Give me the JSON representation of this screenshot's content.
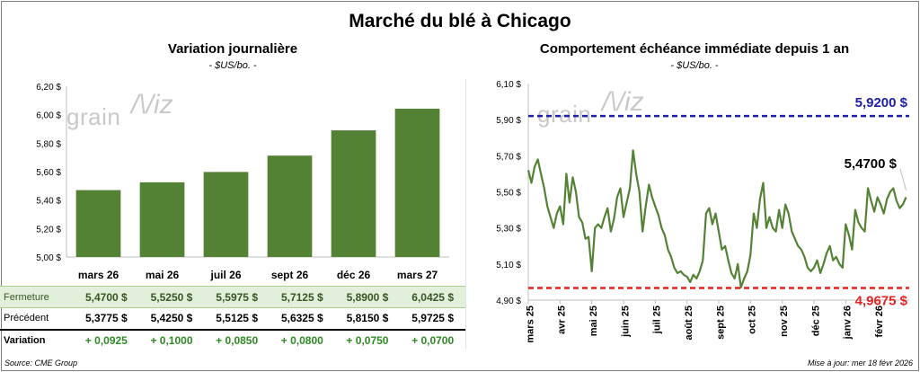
{
  "page": {
    "title": "Marché du blé à Chicago",
    "source": "Source: CME Group",
    "updated": "Mise à jour: mer 18 févr 2026",
    "watermark": "grain",
    "watermark_mark": "/\\/iz"
  },
  "colors": {
    "bar": "#548235",
    "line": "#548235",
    "blue_ref": "#1f1fa8",
    "red_ref": "#e32222",
    "green_text": "#2e8b23"
  },
  "table": {
    "rows": [
      {
        "label": "Fermeture",
        "values": [
          "5,4700  $",
          "5,5250  $",
          "5,5975  $",
          "5,7125  $",
          "5,8900  $",
          "6,0425  $"
        ]
      },
      {
        "label": "Précédent",
        "values": [
          "5,3775  $",
          "5,4250  $",
          "5,5125  $",
          "5,6325  $",
          "5,8150  $",
          "5,9725  $"
        ]
      },
      {
        "label": "Variation",
        "values": [
          "+ 0,0925",
          "+ 0,1000",
          "+ 0,0850",
          "+ 0,0800",
          "+ 0,0750",
          "+ 0,0700"
        ]
      }
    ]
  },
  "chart_data": [
    {
      "type": "bar",
      "title": "Variation journalière",
      "subtitle": "- $US/bo. -",
      "categories": [
        "mars 26",
        "mai 26",
        "juil 26",
        "sept 26",
        "déc 26",
        "mars 27"
      ],
      "values": [
        5.47,
        5.525,
        5.5975,
        5.7125,
        5.89,
        6.0425
      ],
      "ylim": [
        5.0,
        6.2
      ],
      "yticks": [
        5.0,
        5.2,
        5.4,
        5.6,
        5.8,
        6.0,
        6.2
      ],
      "ytick_labels": [
        "5,00 $",
        "5,20 $",
        "5,40 $",
        "5,60 $",
        "5,80 $",
        "6,00 $",
        "6,20 $"
      ]
    },
    {
      "type": "line",
      "title": "Comportement  échéance immédiate depuis 1 an",
      "subtitle": "- $US/bo. -",
      "ylim": [
        4.9,
        6.1
      ],
      "yticks": [
        4.9,
        5.1,
        5.3,
        5.5,
        5.7,
        5.9,
        6.1
      ],
      "ytick_labels": [
        "4,90 $",
        "5,10 $",
        "5,30 $",
        "5,50 $",
        "5,70 $",
        "5,90 $",
        "6,10 $"
      ],
      "xlim": [
        0,
        12
      ],
      "x_labels": [
        "mars 25",
        "avr 25",
        "mai 25",
        "juin 25",
        "juil 25",
        "août 25",
        "sept 25",
        "oct 25",
        "nov 25",
        "déc 25",
        "janv 26",
        "févr 26"
      ],
      "x": [
        0,
        0.1,
        0.2,
        0.3,
        0.4,
        0.5,
        0.6,
        0.7,
        0.8,
        0.9,
        1.0,
        1.1,
        1.2,
        1.3,
        1.4,
        1.5,
        1.6,
        1.7,
        1.8,
        1.9,
        2.0,
        2.1,
        2.2,
        2.3,
        2.4,
        2.5,
        2.6,
        2.7,
        2.8,
        2.9,
        3.0,
        3.1,
        3.2,
        3.3,
        3.4,
        3.5,
        3.6,
        3.7,
        3.8,
        3.9,
        4.0,
        4.1,
        4.2,
        4.3,
        4.4,
        4.5,
        4.6,
        4.7,
        4.8,
        4.9,
        5.0,
        5.1,
        5.2,
        5.3,
        5.4,
        5.5,
        5.6,
        5.7,
        5.8,
        5.9,
        6.0,
        6.1,
        6.2,
        6.3,
        6.4,
        6.5,
        6.6,
        6.7,
        6.8,
        6.9,
        7.0,
        7.1,
        7.2,
        7.3,
        7.4,
        7.5,
        7.6,
        7.7,
        7.8,
        7.9,
        8.0,
        8.1,
        8.2,
        8.3,
        8.4,
        8.5,
        8.6,
        8.7,
        8.8,
        8.9,
        9.0,
        9.1,
        9.2,
        9.3,
        9.4,
        9.5,
        9.6,
        9.7,
        9.8,
        9.9,
        10.0,
        10.1,
        10.2,
        10.3,
        10.4,
        10.5,
        10.6,
        10.7,
        10.8,
        10.9,
        11.0,
        11.1,
        11.2,
        11.3,
        11.4,
        11.5,
        11.6,
        11.7,
        11.8,
        11.9
      ],
      "values": [
        5.62,
        5.55,
        5.64,
        5.68,
        5.6,
        5.52,
        5.42,
        5.36,
        5.3,
        5.38,
        5.42,
        5.32,
        5.6,
        5.44,
        5.58,
        5.5,
        5.36,
        5.33,
        5.24,
        5.25,
        5.06,
        5.3,
        5.32,
        5.3,
        5.36,
        5.41,
        5.28,
        5.35,
        5.47,
        5.52,
        5.36,
        5.44,
        5.52,
        5.73,
        5.6,
        5.5,
        5.28,
        5.42,
        5.54,
        5.47,
        5.42,
        5.37,
        5.3,
        5.26,
        5.18,
        5.14,
        5.08,
        5.05,
        5.06,
        5.04,
        5.03,
        5.0,
        5.04,
        5.02,
        5.06,
        5.12,
        5.38,
        5.41,
        5.32,
        5.38,
        5.28,
        5.18,
        5.2,
        5.12,
        5.05,
        5.02,
        5.1,
        4.97,
        5.02,
        5.06,
        5.15,
        5.38,
        5.3,
        5.46,
        5.55,
        5.3,
        5.36,
        5.3,
        5.28,
        5.4,
        5.3,
        5.43,
        5.38,
        5.28,
        5.24,
        5.2,
        5.18,
        5.14,
        5.08,
        5.06,
        5.08,
        5.12,
        5.05,
        5.1,
        5.16,
        5.2,
        5.12,
        5.14,
        5.1,
        5.08,
        5.32,
        5.26,
        5.18,
        5.4,
        5.33,
        5.3,
        5.28,
        5.52,
        5.45,
        5.39,
        5.47,
        5.43,
        5.38,
        5.46,
        5.5,
        5.52,
        5.45,
        5.41,
        5.43,
        5.47
      ],
      "last_label": "5,4700 $",
      "reference_lines": [
        {
          "value": 5.92,
          "label": "5,9200  $",
          "color": "#1f1fa8"
        },
        {
          "value": 4.9675,
          "label": "4,9675  $",
          "color": "#e32222"
        }
      ]
    }
  ]
}
